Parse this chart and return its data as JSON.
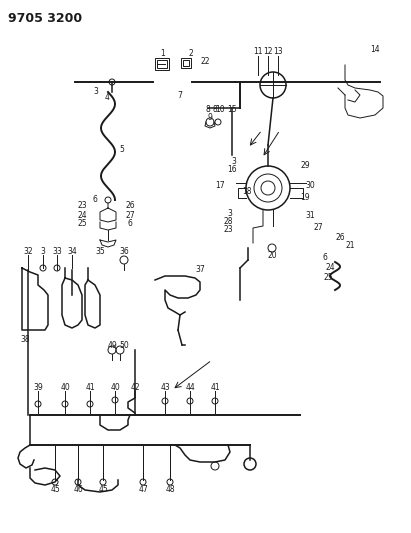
{
  "title": "9705 3200",
  "bg_color": "#ffffff",
  "fg_color": "#1a1a1a",
  "title_fontsize": 9,
  "title_weight": "bold",
  "fig_width": 4.11,
  "fig_height": 5.33,
  "dpi": 100,
  "lw_thin": 0.7,
  "lw_main": 1.1,
  "lw_thick": 1.4,
  "label_fontsize": 5.5
}
